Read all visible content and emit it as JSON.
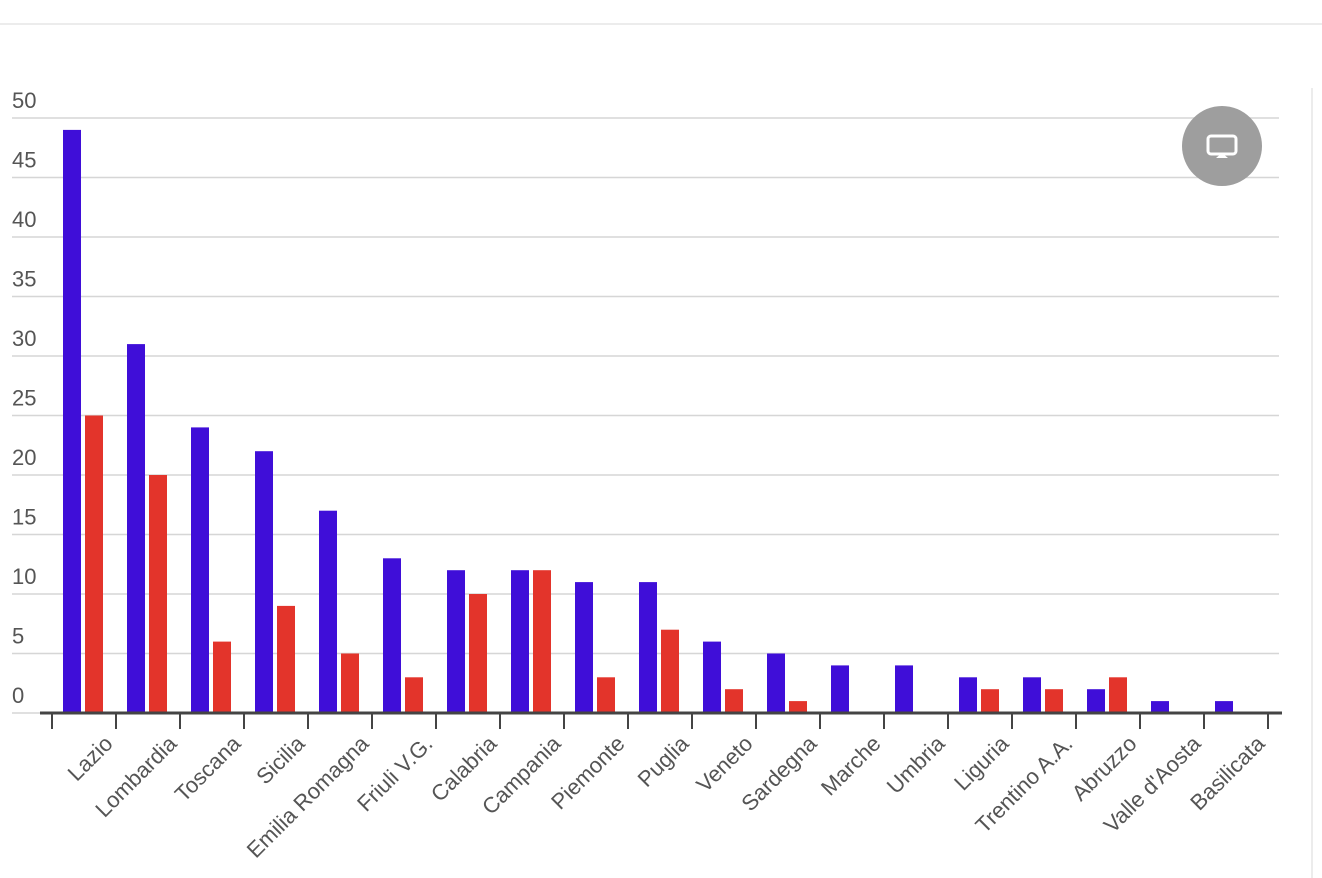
{
  "chart_data": {
    "type": "bar",
    "categories": [
      "Lazio",
      "Lombardia",
      "Toscana",
      "Sicilia",
      "Emilia Romagna",
      "Friuli V.G.",
      "Calabria",
      "Campania",
      "Piemonte",
      "Puglia",
      "Veneto",
      "Sardegna",
      "Marche",
      "Umbria",
      "Liguria",
      "Trentino A.A.",
      "Abruzzo",
      "Valle d'Aosta",
      "Basilicata"
    ],
    "series": [
      {
        "color": "#3f0ed8",
        "values": [
          49,
          31,
          24,
          22,
          17,
          13,
          12,
          12,
          11,
          11,
          6,
          5,
          4,
          4,
          3,
          3,
          2,
          1,
          1
        ]
      },
      {
        "color": "#e3342b",
        "values": [
          25,
          20,
          6,
          9,
          5,
          3,
          10,
          12,
          3,
          7,
          2,
          1,
          0,
          0,
          2,
          2,
          3,
          0,
          0
        ]
      }
    ],
    "ylim": [
      0,
      50
    ],
    "yticks": [
      0,
      5,
      10,
      15,
      20,
      25,
      30,
      35,
      40,
      45,
      50
    ],
    "grid": true
  }
}
